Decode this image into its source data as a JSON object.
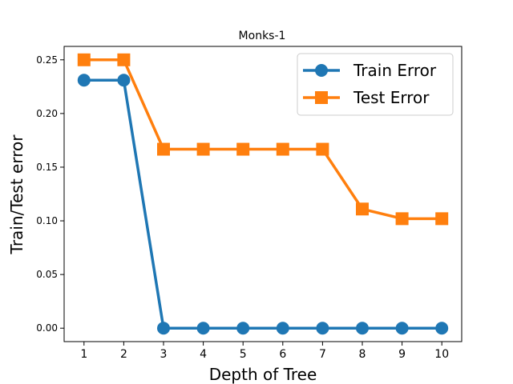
{
  "chart_data": {
    "type": "line",
    "title": "Monks-1",
    "xlabel": "Depth of Tree",
    "ylabel": "Train/Test error",
    "x": [
      1,
      2,
      3,
      4,
      5,
      6,
      7,
      8,
      9,
      10
    ],
    "xticks": [
      "1",
      "2",
      "3",
      "4",
      "5",
      "6",
      "7",
      "8",
      "9",
      "10"
    ],
    "yticks": [
      "0.00",
      "0.05",
      "0.10",
      "0.15",
      "0.20",
      "0.25"
    ],
    "ytick_values": [
      0.0,
      0.05,
      0.1,
      0.15,
      0.2,
      0.25
    ],
    "xlim": [
      0.5,
      10.5
    ],
    "ylim": [
      -0.0125,
      0.2625
    ],
    "grid": false,
    "legend_position": "top-right",
    "series": [
      {
        "name": "Train Error",
        "values": [
          0.231,
          0.231,
          0.0,
          0.0,
          0.0,
          0.0,
          0.0,
          0.0,
          0.0,
          0.0
        ],
        "color": "#1f77b4",
        "marker": "circle"
      },
      {
        "name": "Test Error",
        "values": [
          0.25,
          0.25,
          0.1667,
          0.1667,
          0.1667,
          0.1667,
          0.1667,
          0.111,
          0.102,
          0.102
        ],
        "color": "#ff7f0e",
        "marker": "square"
      }
    ]
  }
}
